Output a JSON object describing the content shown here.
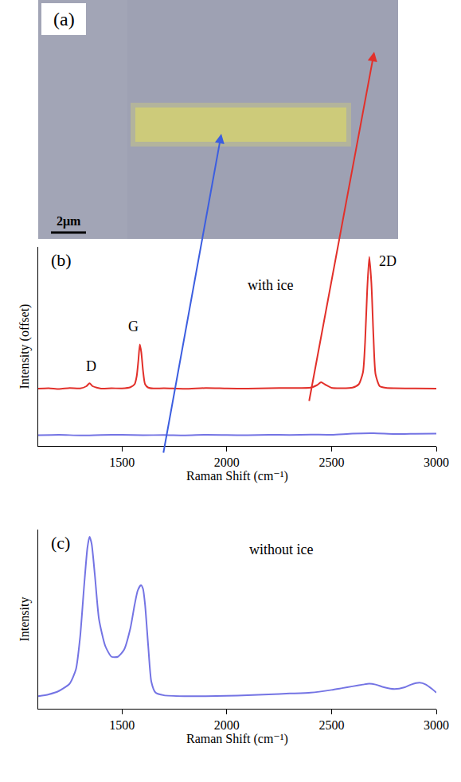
{
  "image": {
    "label": "(a)",
    "scale_bar": "2μm"
  },
  "chart_data": [
    {
      "label": "(b)",
      "type": "line",
      "x_label": "Raman Shift (cm⁻¹)",
      "y_label": "Intensity (offset)",
      "xlim": [
        1100,
        3000
      ],
      "xticks": [
        1500,
        2000,
        2500,
        3000
      ],
      "ylim": [
        0,
        100
      ],
      "yticks": [],
      "tick_labels": "x",
      "grid": false,
      "annotations": [
        {
          "text": "with ice",
          "x": 2208,
          "y": 81
        },
        {
          "text": "D",
          "x": 1354,
          "y": 40
        },
        {
          "text": "G",
          "x": 1554,
          "y": 60
        },
        {
          "text": "2D",
          "x": 2769,
          "y": 93
        }
      ],
      "series": [
        {
          "color": "#e2302a",
          "x": [
            1100,
            1150,
            1200,
            1250,
            1300,
            1330,
            1345,
            1360,
            1400,
            1450,
            1500,
            1540,
            1560,
            1570,
            1578,
            1585,
            1592,
            1600,
            1610,
            1625,
            1650,
            1700,
            1800,
            1900,
            2000,
            2100,
            2200,
            2300,
            2400,
            2430,
            2450,
            2470,
            2500,
            2550,
            2600,
            2630,
            2650,
            2660,
            2670,
            2680,
            2690,
            2700,
            2710,
            2730,
            2760,
            2800,
            2900,
            3000
          ],
          "values": [
            28.8,
            29.0,
            28.6,
            29.1,
            28.9,
            30.0,
            31.5,
            30.0,
            28.8,
            29.0,
            28.9,
            29.5,
            31,
            35,
            43,
            51,
            47,
            38,
            31,
            29.3,
            28.9,
            29.0,
            28.7,
            29.1,
            28.9,
            28.8,
            29.0,
            29.1,
            29.3,
            30.5,
            32,
            30.8,
            29.2,
            29.0,
            29.3,
            31,
            37,
            52,
            78,
            95,
            82,
            55,
            36,
            30,
            29.2,
            29.0,
            28.9,
            28.8
          ]
        },
        {
          "color": "#7474e4",
          "x": [
            1100,
            1200,
            1300,
            1400,
            1500,
            1600,
            1700,
            1800,
            1900,
            2000,
            2100,
            2200,
            2300,
            2400,
            2500,
            2600,
            2700,
            2800,
            2900,
            3000
          ],
          "values": [
            5.4,
            5.6,
            5.3,
            5.5,
            5.6,
            5.4,
            5.5,
            5.3,
            5.6,
            5.5,
            5.4,
            5.6,
            5.5,
            5.7,
            5.6,
            6.2,
            6.4,
            6.0,
            6.1,
            6.2
          ]
        }
      ]
    },
    {
      "label": "(c)",
      "type": "line",
      "x_label": "Raman Shift (cm⁻¹)",
      "y_label": "Intensity",
      "xlim": [
        1100,
        3000
      ],
      "xticks": [
        1500,
        2000,
        2500,
        3000
      ],
      "ylim": [
        0,
        100
      ],
      "yticks": [],
      "tick_labels": "x",
      "grid": false,
      "annotations": [
        {
          "text": "without ice",
          "x": 2258,
          "y": 89
        }
      ],
      "series": [
        {
          "color": "#7474e4",
          "x": [
            1100,
            1150,
            1200,
            1250,
            1280,
            1300,
            1320,
            1335,
            1345,
            1355,
            1370,
            1390,
            1420,
            1450,
            1480,
            1510,
            1540,
            1560,
            1575,
            1590,
            1600,
            1610,
            1625,
            1640,
            1660,
            1700,
            1800,
            1900,
            2000,
            2100,
            2200,
            2300,
            2400,
            2500,
            2550,
            2600,
            2650,
            2680,
            2710,
            2750,
            2800,
            2850,
            2880,
            2920,
            2950,
            2980,
            3000
          ],
          "values": [
            7,
            8,
            10,
            14,
            22,
            40,
            70,
            90,
            96,
            92,
            75,
            50,
            35,
            29,
            29,
            33,
            45,
            58,
            66,
            69,
            67,
            58,
            35,
            15,
            9,
            7.5,
            7,
            7,
            7.2,
            7.5,
            8,
            8.5,
            9,
            10.5,
            11.5,
            12.5,
            13.5,
            14,
            13.5,
            12,
            11,
            12,
            13.5,
            14.5,
            13.5,
            11,
            9
          ]
        }
      ]
    }
  ]
}
